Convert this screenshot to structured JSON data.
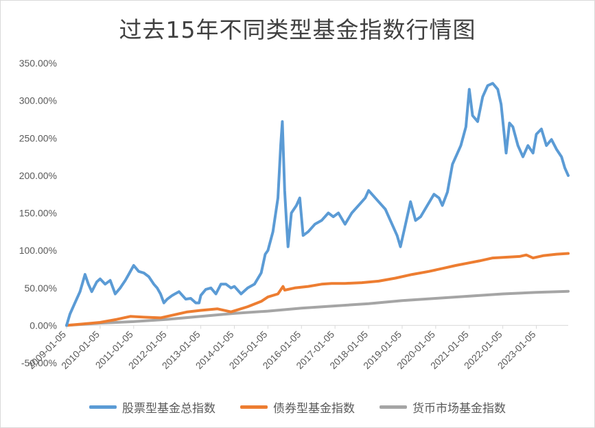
{
  "chart_data": {
    "type": "line",
    "title": "过去15年不同类型基金指数行情图",
    "ylim": [
      -50,
      350
    ],
    "y_ticks": [
      "-50.00%",
      "0.00%",
      "50.00%",
      "100.00%",
      "150.00%",
      "200.00%",
      "250.00%",
      "300.00%",
      "350.00%"
    ],
    "y_tick_values": [
      -50,
      0,
      50,
      100,
      150,
      200,
      250,
      300,
      350
    ],
    "x_ticks": [
      "2009-01-05",
      "2010-01-05",
      "2011-01-05",
      "2012-01-05",
      "2013-01-05",
      "2014-01-05",
      "2015-01-05",
      "2016-01-05",
      "2017-01-05",
      "2018-01-05",
      "2019-01-05",
      "2020-01-05",
      "2021-01-05",
      "2022-01-05",
      "2023-01-05"
    ],
    "x_tick_values": [
      2009,
      2010,
      2011,
      2012,
      2013,
      2014,
      2015,
      2016,
      2017,
      2018,
      2019,
      2020,
      2021,
      2022,
      2023
    ],
    "xlim": [
      2009,
      2023.95
    ],
    "grid": false,
    "legend_position": "bottom",
    "series": [
      {
        "name": "股票型基金总指数",
        "color": "#5b9bd5",
        "points": [
          [
            2009.0,
            0
          ],
          [
            2009.1,
            15
          ],
          [
            2009.25,
            30
          ],
          [
            2009.4,
            45
          ],
          [
            2009.55,
            68
          ],
          [
            2009.65,
            55
          ],
          [
            2009.75,
            45
          ],
          [
            2009.9,
            58
          ],
          [
            2010.0,
            62
          ],
          [
            2010.15,
            55
          ],
          [
            2010.3,
            60
          ],
          [
            2010.45,
            42
          ],
          [
            2010.6,
            50
          ],
          [
            2010.75,
            60
          ],
          [
            2010.85,
            68
          ],
          [
            2011.0,
            80
          ],
          [
            2011.15,
            72
          ],
          [
            2011.3,
            70
          ],
          [
            2011.45,
            65
          ],
          [
            2011.6,
            55
          ],
          [
            2011.7,
            50
          ],
          [
            2011.8,
            42
          ],
          [
            2011.9,
            30
          ],
          [
            2012.0,
            35
          ],
          [
            2012.15,
            40
          ],
          [
            2012.35,
            45
          ],
          [
            2012.55,
            35
          ],
          [
            2012.7,
            36
          ],
          [
            2012.85,
            30
          ],
          [
            2012.95,
            30
          ],
          [
            2013.0,
            40
          ],
          [
            2013.15,
            48
          ],
          [
            2013.3,
            50
          ],
          [
            2013.45,
            42
          ],
          [
            2013.6,
            55
          ],
          [
            2013.75,
            55
          ],
          [
            2013.9,
            50
          ],
          [
            2014.0,
            52
          ],
          [
            2014.2,
            42
          ],
          [
            2014.4,
            50
          ],
          [
            2014.6,
            55
          ],
          [
            2014.8,
            70
          ],
          [
            2014.92,
            95
          ],
          [
            2015.0,
            100
          ],
          [
            2015.15,
            125
          ],
          [
            2015.3,
            170
          ],
          [
            2015.38,
            240
          ],
          [
            2015.43,
            272
          ],
          [
            2015.5,
            180
          ],
          [
            2015.55,
            140
          ],
          [
            2015.6,
            105
          ],
          [
            2015.7,
            150
          ],
          [
            2015.85,
            160
          ],
          [
            2015.95,
            170
          ],
          [
            2016.05,
            120
          ],
          [
            2016.2,
            125
          ],
          [
            2016.4,
            135
          ],
          [
            2016.6,
            140
          ],
          [
            2016.8,
            150
          ],
          [
            2016.95,
            145
          ],
          [
            2017.1,
            150
          ],
          [
            2017.3,
            135
          ],
          [
            2017.5,
            150
          ],
          [
            2017.7,
            160
          ],
          [
            2017.9,
            170
          ],
          [
            2018.0,
            180
          ],
          [
            2018.1,
            175
          ],
          [
            2018.3,
            165
          ],
          [
            2018.5,
            155
          ],
          [
            2018.7,
            135
          ],
          [
            2018.85,
            120
          ],
          [
            2018.95,
            105
          ],
          [
            2019.1,
            135
          ],
          [
            2019.25,
            165
          ],
          [
            2019.4,
            140
          ],
          [
            2019.55,
            145
          ],
          [
            2019.75,
            160
          ],
          [
            2019.95,
            175
          ],
          [
            2020.1,
            170
          ],
          [
            2020.2,
            160
          ],
          [
            2020.35,
            178
          ],
          [
            2020.5,
            215
          ],
          [
            2020.6,
            225
          ],
          [
            2020.75,
            240
          ],
          [
            2020.9,
            265
          ],
          [
            2021.0,
            315
          ],
          [
            2021.1,
            280
          ],
          [
            2021.25,
            272
          ],
          [
            2021.4,
            305
          ],
          [
            2021.55,
            320
          ],
          [
            2021.7,
            323
          ],
          [
            2021.85,
            315
          ],
          [
            2021.95,
            295
          ],
          [
            2022.1,
            230
          ],
          [
            2022.2,
            270
          ],
          [
            2022.3,
            265
          ],
          [
            2022.45,
            240
          ],
          [
            2022.6,
            225
          ],
          [
            2022.75,
            240
          ],
          [
            2022.9,
            230
          ],
          [
            2023.0,
            255
          ],
          [
            2023.15,
            262
          ],
          [
            2023.3,
            240
          ],
          [
            2023.45,
            248
          ],
          [
            2023.6,
            235
          ],
          [
            2023.75,
            225
          ],
          [
            2023.85,
            210
          ],
          [
            2023.95,
            200
          ]
        ]
      },
      {
        "name": "债券型基金指数",
        "color": "#ed7d31",
        "points": [
          [
            2009.0,
            0
          ],
          [
            2009.5,
            2
          ],
          [
            2010.0,
            4
          ],
          [
            2010.5,
            8
          ],
          [
            2010.9,
            12
          ],
          [
            2011.3,
            11
          ],
          [
            2011.8,
            10
          ],
          [
            2012.2,
            14
          ],
          [
            2012.6,
            18
          ],
          [
            2013.0,
            20
          ],
          [
            2013.5,
            22
          ],
          [
            2013.9,
            18
          ],
          [
            2014.4,
            25
          ],
          [
            2014.8,
            32
          ],
          [
            2015.0,
            38
          ],
          [
            2015.3,
            42
          ],
          [
            2015.45,
            52
          ],
          [
            2015.5,
            47
          ],
          [
            2015.8,
            50
          ],
          [
            2016.2,
            52
          ],
          [
            2016.6,
            55
          ],
          [
            2016.9,
            56
          ],
          [
            2017.3,
            56
          ],
          [
            2017.8,
            57
          ],
          [
            2018.3,
            59
          ],
          [
            2018.8,
            63
          ],
          [
            2019.3,
            68
          ],
          [
            2019.8,
            72
          ],
          [
            2020.3,
            77
          ],
          [
            2020.6,
            80
          ],
          [
            2020.95,
            83
          ],
          [
            2021.3,
            86
          ],
          [
            2021.7,
            90
          ],
          [
            2022.1,
            91
          ],
          [
            2022.5,
            92
          ],
          [
            2022.7,
            94
          ],
          [
            2022.9,
            90
          ],
          [
            2023.2,
            93
          ],
          [
            2023.6,
            95
          ],
          [
            2023.95,
            96
          ]
        ]
      },
      {
        "name": "货币市场基金指数",
        "color": "#a5a5a5",
        "points": [
          [
            2009.0,
            0
          ],
          [
            2010.0,
            3
          ],
          [
            2011.0,
            5
          ],
          [
            2012.0,
            8
          ],
          [
            2013.0,
            12
          ],
          [
            2014.0,
            16
          ],
          [
            2015.0,
            19
          ],
          [
            2016.0,
            23
          ],
          [
            2017.0,
            26
          ],
          [
            2018.0,
            29
          ],
          [
            2019.0,
            33
          ],
          [
            2020.0,
            36
          ],
          [
            2021.0,
            39
          ],
          [
            2022.0,
            42
          ],
          [
            2023.0,
            44
          ],
          [
            2023.95,
            45.5
          ]
        ]
      }
    ]
  }
}
